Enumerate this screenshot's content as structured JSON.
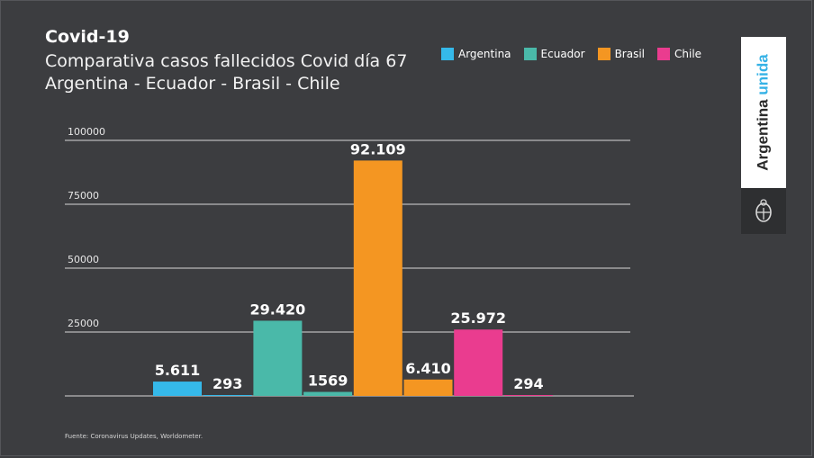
{
  "title": "Covid-19",
  "subtitle_line1": "Comparativa casos fallecidos Covid día 67",
  "subtitle_line2": "Argentina - Ecuador - Brasil -  Chile",
  "legend": [
    {
      "label": "Argentina",
      "color": "#35b9ea"
    },
    {
      "label": "Ecuador",
      "color": "#4ab9a9"
    },
    {
      "label": "Brasil",
      "color": "#f49622"
    },
    {
      "label": "Chile",
      "color": "#ea3c8f"
    }
  ],
  "brand": {
    "text_main": "Argentina",
    "text_accent": "unida",
    "seal_icon": "coat-of-arms-icon"
  },
  "source": "Fuente: Coronavirus Updates, Worldometer.",
  "chart_data": {
    "type": "bar",
    "ylim": [
      0,
      100000
    ],
    "yticks": [
      {
        "value": 100000,
        "label": "100000"
      },
      {
        "value": 75000,
        "label": "75000"
      },
      {
        "value": 50000,
        "label": "50000"
      },
      {
        "value": 25000,
        "label": "25000"
      }
    ],
    "grid": true,
    "bars": [
      {
        "value": 5611,
        "label": "5.611",
        "color": "#35b9ea"
      },
      {
        "value": 293,
        "label": "293",
        "color": "#35b9ea"
      },
      {
        "value": 29420,
        "label": "29.420",
        "color": "#4ab9a9"
      },
      {
        "value": 1569,
        "label": "1569",
        "color": "#4ab9a9"
      },
      {
        "value": 92109,
        "label": "92.109",
        "color": "#f49622"
      },
      {
        "value": 6410,
        "label": "6.410",
        "color": "#f49622"
      },
      {
        "value": 25972,
        "label": "25.972",
        "color": "#ea3c8f"
      },
      {
        "value": 294,
        "label": "294",
        "color": "#ea3c8f"
      }
    ]
  }
}
